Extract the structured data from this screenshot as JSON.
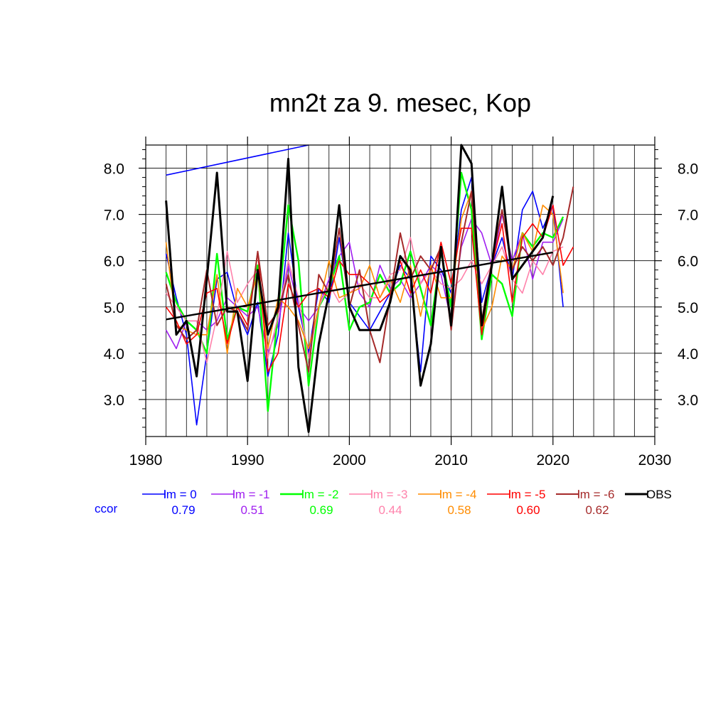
{
  "chart_data": {
    "type": "line",
    "title": "mn2t za 9. mesec, Kop",
    "xlabel": "",
    "ylabel": "",
    "xlim": [
      1980,
      2030
    ],
    "ylim": [
      2.2,
      8.5
    ],
    "xticks": [
      1980,
      1990,
      2000,
      2010,
      2020,
      2030
    ],
    "xtick_labels": [
      "1980",
      "1990",
      "2000",
      "2010",
      "2020",
      "2030"
    ],
    "yticks": [
      3.0,
      4.0,
      5.0,
      6.0,
      7.0,
      8.0
    ],
    "ytick_labels": [
      "3.0",
      "4.0",
      "5.0",
      "6.0",
      "7.0",
      "8.0"
    ],
    "grid": true,
    "ccor_label": "ccor",
    "series": [
      {
        "name": "lm = 0",
        "color": "#0000ff",
        "width": 1.6,
        "corr": "0.79",
        "x": [
          1982,
          1983,
          1984,
          1985,
          1986,
          1987,
          1988,
          1989,
          1990,
          1991,
          1992,
          1993,
          1994,
          1995,
          1996,
          1997,
          1998,
          1999,
          2000,
          2001,
          2002,
          2003,
          2004,
          2005,
          2006,
          2007,
          2008,
          2009,
          2010,
          2011,
          2012,
          2013,
          2014,
          2015,
          2016,
          2017,
          2018,
          2019,
          2020,
          2021
        ],
        "y": [
          6.15,
          5.2,
          4.4,
          2.45,
          4.0,
          5.6,
          5.75,
          4.9,
          4.4,
          5.1,
          3.5,
          4.4,
          6.6,
          5.0,
          4.0,
          5.4,
          5.1,
          6.5,
          5.1,
          4.8,
          4.5,
          4.9,
          5.3,
          5.9,
          5.6,
          3.6,
          6.1,
          5.8,
          5.3,
          7.1,
          7.8,
          5.1,
          5.9,
          6.5,
          5.6,
          7.1,
          7.5,
          6.7,
          7.2,
          5.0
        ]
      },
      {
        "name": "lm = -1",
        "color": "#a020f0",
        "width": 1.6,
        "corr": "0.51",
        "x": [
          1982,
          1983,
          1984,
          1985,
          1986,
          1987,
          1988,
          1989,
          1990,
          1991,
          1992,
          1993,
          1994,
          1995,
          1996,
          1997,
          1998,
          1999,
          2000,
          2001,
          2002,
          2003,
          2004,
          2005,
          2006,
          2007,
          2008,
          2009,
          2010,
          2011,
          2012,
          2013,
          2014,
          2015,
          2016,
          2017,
          2018,
          2019,
          2020,
          2021
        ],
        "y": [
          4.5,
          4.1,
          4.7,
          4.7,
          4.5,
          4.7,
          5.2,
          5.0,
          4.8,
          5.0,
          4.0,
          4.6,
          5.9,
          5.0,
          4.7,
          5.0,
          5.6,
          6.1,
          6.4,
          5.3,
          5.0,
          5.9,
          5.4,
          5.6,
          5.2,
          5.5,
          5.9,
          5.7,
          4.7,
          6.3,
          6.9,
          6.6,
          5.9,
          7.0,
          6.0,
          6.6,
          5.6,
          6.4,
          6.4,
          6.9
        ]
      },
      {
        "name": "lm = -2",
        "color": "#00ff00",
        "width": 2.4,
        "corr": "0.69",
        "x": [
          1982,
          1983,
          1984,
          1985,
          1986,
          1987,
          1988,
          1989,
          1990,
          1991,
          1992,
          1993,
          1994,
          1995,
          1996,
          1997,
          1998,
          1999,
          2000,
          2001,
          2002,
          2003,
          2004,
          2005,
          2006,
          2007,
          2008,
          2009,
          2010,
          2011,
          2012,
          2013,
          2014,
          2015,
          2016,
          2017,
          2018,
          2019,
          2020,
          2021
        ],
        "y": [
          5.75,
          5.1,
          4.7,
          4.5,
          4.0,
          6.15,
          4.3,
          5.0,
          4.9,
          5.9,
          2.75,
          4.9,
          7.2,
          6.0,
          3.3,
          5.0,
          5.4,
          6.1,
          4.5,
          5.0,
          5.1,
          5.7,
          5.3,
          5.5,
          6.2,
          5.4,
          4.6,
          6.2,
          5.0,
          7.9,
          7.1,
          4.3,
          5.7,
          5.5,
          4.8,
          6.6,
          6.3,
          6.6,
          6.5,
          6.95
        ]
      },
      {
        "name": "lm = -3",
        "color": "#ff82ab",
        "width": 1.6,
        "corr": "0.44",
        "x": [
          1982,
          1983,
          1984,
          1985,
          1986,
          1987,
          1988,
          1989,
          1990,
          1991,
          1992,
          1993,
          1994,
          1995,
          1996,
          1997,
          1998,
          1999,
          2000,
          2001,
          2002,
          2003,
          2004,
          2005,
          2006,
          2007,
          2008,
          2009,
          2010,
          2011,
          2012,
          2013,
          2014,
          2015,
          2016,
          2017,
          2018,
          2019,
          2020,
          2021
        ],
        "y": [
          5.3,
          5.0,
          4.7,
          4.7,
          3.8,
          4.8,
          6.2,
          5.1,
          5.5,
          5.8,
          3.9,
          4.8,
          6.0,
          5.2,
          3.9,
          5.0,
          5.5,
          5.1,
          5.3,
          5.5,
          5.2,
          5.2,
          5.7,
          5.8,
          6.5,
          5.5,
          5.8,
          5.5,
          5.4,
          5.6,
          6.0,
          5.5,
          5.9,
          6.3,
          5.6,
          5.3,
          6.0,
          5.7,
          6.2,
          6.3
        ]
      },
      {
        "name": "lm = -4",
        "color": "#ff8c00",
        "width": 1.6,
        "corr": "0.58",
        "x": [
          1982,
          1983,
          1984,
          1985,
          1986,
          1987,
          1988,
          1989,
          1990,
          1991,
          1992,
          1993,
          1994,
          1995,
          1996,
          1997,
          1998,
          1999,
          2000,
          2001,
          2002,
          2003,
          2004,
          2005,
          2006,
          2007,
          2008,
          2009,
          2010,
          2011,
          2012,
          2013,
          2014,
          2015,
          2016,
          2017,
          2018,
          2019,
          2020,
          2021
        ],
        "y": [
          6.4,
          4.6,
          4.5,
          4.4,
          4.4,
          5.7,
          4.0,
          5.4,
          5.0,
          5.7,
          4.1,
          5.2,
          5.0,
          4.7,
          4.1,
          5.0,
          6.0,
          5.2,
          5.3,
          5.4,
          5.9,
          5.2,
          5.6,
          5.1,
          5.9,
          4.8,
          5.9,
          5.2,
          5.2,
          6.9,
          7.5,
          4.5,
          5.0,
          6.1,
          5.8,
          6.6,
          6.2,
          7.2,
          7.0,
          5.3
        ]
      },
      {
        "name": "lm = -5",
        "color": "#ff0000",
        "width": 1.6,
        "corr": "0.60",
        "x": [
          1982,
          1983,
          1984,
          1985,
          1986,
          1987,
          1988,
          1989,
          1990,
          1991,
          1992,
          1993,
          1994,
          1995,
          1996,
          1997,
          1998,
          1999,
          2000,
          2001,
          2002,
          2003,
          2004,
          2005,
          2006,
          2007,
          2008,
          2009,
          2010,
          2011,
          2012,
          2013,
          2014,
          2015,
          2016,
          2017,
          2018,
          2019,
          2020,
          2021,
          2022
        ],
        "y": [
          5.0,
          4.7,
          4.2,
          4.4,
          5.3,
          5.4,
          4.2,
          5.0,
          4.6,
          6.2,
          3.6,
          4.0,
          5.5,
          5.0,
          5.3,
          5.4,
          5.2,
          6.0,
          5.7,
          5.7,
          5.5,
          5.1,
          5.3,
          6.0,
          5.3,
          5.8,
          5.3,
          6.4,
          5.5,
          6.7,
          6.7,
          4.4,
          5.9,
          6.8,
          5.1,
          6.5,
          6.8,
          6.5,
          7.2,
          5.9,
          6.3
        ]
      },
      {
        "name": "lm = -6",
        "color": "#a52a2a",
        "width": 2.0,
        "corr": "0.62",
        "x": [
          1982,
          1983,
          1984,
          1985,
          1986,
          1987,
          1988,
          1989,
          1990,
          1991,
          1992,
          1993,
          1994,
          1995,
          1996,
          1997,
          1998,
          1999,
          2000,
          2001,
          2002,
          2003,
          2004,
          2005,
          2006,
          2007,
          2008,
          2009,
          2010,
          2011,
          2012,
          2013,
          2014,
          2015,
          2016,
          2017,
          2018,
          2019,
          2020,
          2021,
          2022
        ],
        "y": [
          5.5,
          4.6,
          4.3,
          4.5,
          5.8,
          4.6,
          5.0,
          4.9,
          4.5,
          6.2,
          4.6,
          4.9,
          5.7,
          4.6,
          3.6,
          5.7,
          5.3,
          6.7,
          5.0,
          5.8,
          4.5,
          3.8,
          5.2,
          6.6,
          5.6,
          6.1,
          5.8,
          6.3,
          4.5,
          6.4,
          7.5,
          4.7,
          6.0,
          7.1,
          5.8,
          6.3,
          6.0,
          6.3,
          5.9,
          6.5,
          7.6
        ]
      },
      {
        "name": "OBS",
        "color": "#000000",
        "width": 3.0,
        "corr": "",
        "x": [
          1982,
          1983,
          1984,
          1985,
          1986,
          1987,
          1988,
          1989,
          1990,
          1991,
          1992,
          1993,
          1994,
          1995,
          1996,
          1997,
          1998,
          1999,
          2000,
          2001,
          2002,
          2003,
          2004,
          2005,
          2006,
          2007,
          2008,
          2009,
          2010,
          2011,
          2012,
          2013,
          2014,
          2015,
          2016,
          2017,
          2018,
          2019,
          2020
        ],
        "y": [
          7.3,
          4.4,
          4.7,
          3.5,
          5.6,
          7.9,
          4.9,
          4.9,
          3.4,
          5.8,
          4.4,
          5.0,
          8.2,
          3.7,
          2.3,
          4.2,
          5.3,
          7.2,
          5.0,
          4.5,
          4.5,
          4.5,
          5.1,
          6.1,
          5.8,
          3.3,
          4.2,
          6.3,
          4.6,
          8.5,
          8.1,
          4.6,
          5.9,
          7.6,
          5.6,
          5.9,
          6.2,
          6.5,
          7.4
        ]
      }
    ],
    "trend_lines": [
      {
        "color": "#000000",
        "width": 2.4,
        "x": [
          1982,
          2020
        ],
        "y": [
          4.73,
          6.18
        ]
      },
      {
        "color": "#0000ff",
        "width": 1.6,
        "x": [
          1982,
          1996
        ],
        "y": [
          7.85,
          8.5
        ]
      }
    ]
  }
}
